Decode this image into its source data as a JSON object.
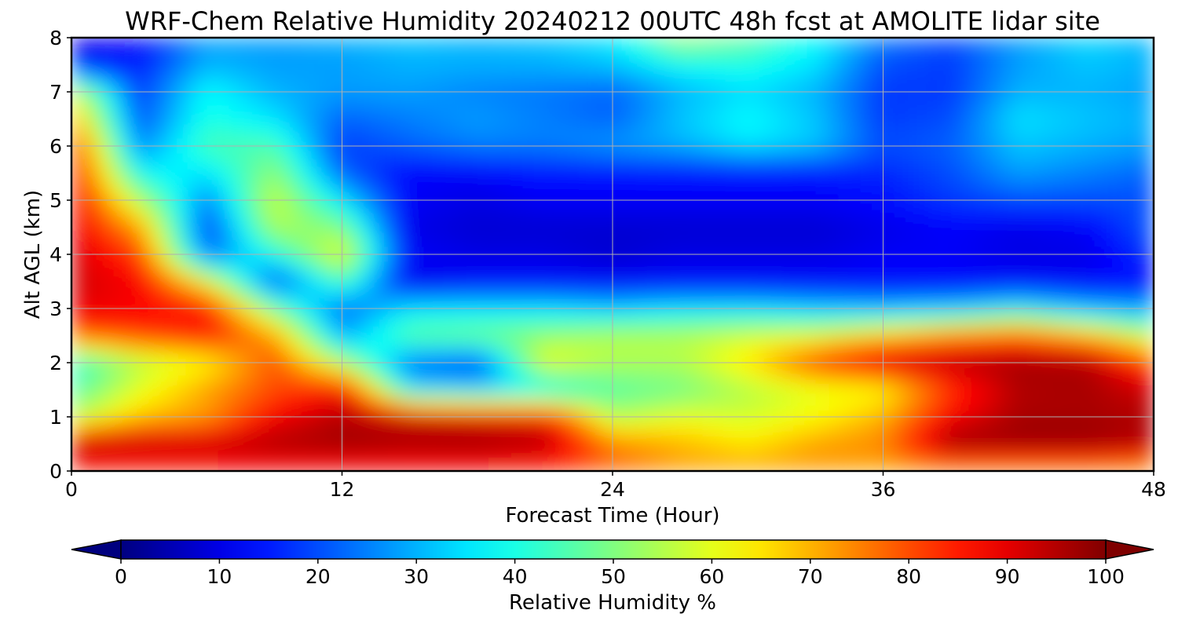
{
  "chart_data": {
    "type": "heatmap",
    "title": "WRF-Chem Relative Humidity 20240212 00UTC 48h fcst at AMOLITE lidar site",
    "xlabel": "Forecast Time (Hour)",
    "ylabel": "Alt AGL (km)",
    "xlim": [
      0,
      48
    ],
    "ylim": [
      0,
      8
    ],
    "xticks": [
      "0",
      "12",
      "24",
      "36",
      "48"
    ],
    "yticks": [
      "0",
      "1",
      "2",
      "3",
      "4",
      "5",
      "6",
      "7",
      "8"
    ],
    "grid": true,
    "colormap": "jet",
    "colorbar": {
      "label": "Relative Humidity %",
      "range": [
        0,
        100
      ],
      "ticks": [
        "0",
        "10",
        "20",
        "30",
        "40",
        "50",
        "60",
        "70",
        "80",
        "90",
        "100"
      ],
      "extend": "both",
      "orientation": "horizontal",
      "placement": "bottom"
    },
    "x": [
      0,
      3,
      6,
      9,
      12,
      15,
      18,
      21,
      24,
      27,
      30,
      33,
      36,
      39,
      42,
      45,
      48
    ],
    "y": [
      0,
      0.5,
      1,
      1.5,
      2,
      2.5,
      3,
      3.5,
      4,
      4.5,
      5,
      5.5,
      6,
      6.5,
      7,
      7.5,
      8
    ],
    "z": [
      [
        82,
        82,
        84,
        85,
        85,
        85,
        84,
        82,
        78,
        72,
        72,
        72,
        70,
        72,
        72,
        72,
        70
      ],
      [
        96,
        95,
        94,
        96,
        97,
        96,
        97,
        95,
        75,
        70,
        65,
        72,
        75,
        98,
        98,
        98,
        95
      ],
      [
        55,
        68,
        72,
        88,
        95,
        93,
        90,
        88,
        55,
        60,
        58,
        62,
        70,
        88,
        96,
        96,
        95
      ],
      [
        45,
        60,
        72,
        80,
        88,
        35,
        33,
        35,
        45,
        48,
        55,
        60,
        62,
        82,
        95,
        96,
        92
      ],
      [
        40,
        55,
        62,
        80,
        55,
        22,
        18,
        62,
        55,
        55,
        65,
        82,
        93,
        95,
        97,
        96,
        80
      ],
      [
        78,
        82,
        86,
        72,
        28,
        48,
        50,
        52,
        55,
        55,
        58,
        60,
        68,
        75,
        78,
        70,
        55
      ],
      [
        90,
        88,
        86,
        48,
        22,
        35,
        35,
        35,
        32,
        35,
        35,
        32,
        30,
        32,
        38,
        30,
        28
      ],
      [
        92,
        88,
        62,
        18,
        45,
        10,
        12,
        12,
        12,
        12,
        12,
        12,
        12,
        12,
        12,
        12,
        12
      ],
      [
        92,
        82,
        22,
        40,
        62,
        12,
        10,
        10,
        8,
        10,
        10,
        10,
        12,
        12,
        10,
        10,
        18
      ],
      [
        90,
        72,
        18,
        55,
        50,
        10,
        8,
        8,
        8,
        8,
        8,
        8,
        10,
        12,
        10,
        12,
        22
      ],
      [
        90,
        55,
        25,
        58,
        35,
        12,
        10,
        12,
        12,
        12,
        12,
        12,
        14,
        18,
        20,
        20,
        20
      ],
      [
        88,
        38,
        35,
        52,
        22,
        12,
        12,
        14,
        14,
        14,
        14,
        14,
        16,
        20,
        28,
        25,
        22
      ],
      [
        85,
        25,
        45,
        45,
        18,
        22,
        25,
        25,
        28,
        30,
        35,
        32,
        20,
        22,
        32,
        30,
        28
      ],
      [
        72,
        20,
        40,
        35,
        22,
        25,
        28,
        25,
        22,
        32,
        38,
        32,
        18,
        20,
        35,
        32,
        30
      ],
      [
        60,
        18,
        38,
        30,
        28,
        28,
        25,
        24,
        22,
        30,
        34,
        30,
        18,
        18,
        30,
        30,
        28
      ],
      [
        12,
        15,
        30,
        28,
        28,
        30,
        30,
        30,
        32,
        38,
        40,
        35,
        20,
        18,
        28,
        32,
        30
      ],
      [
        10,
        12,
        28,
        28,
        30,
        32,
        30,
        32,
        36,
        55,
        48,
        38,
        25,
        20,
        28,
        34,
        30
      ]
    ]
  }
}
